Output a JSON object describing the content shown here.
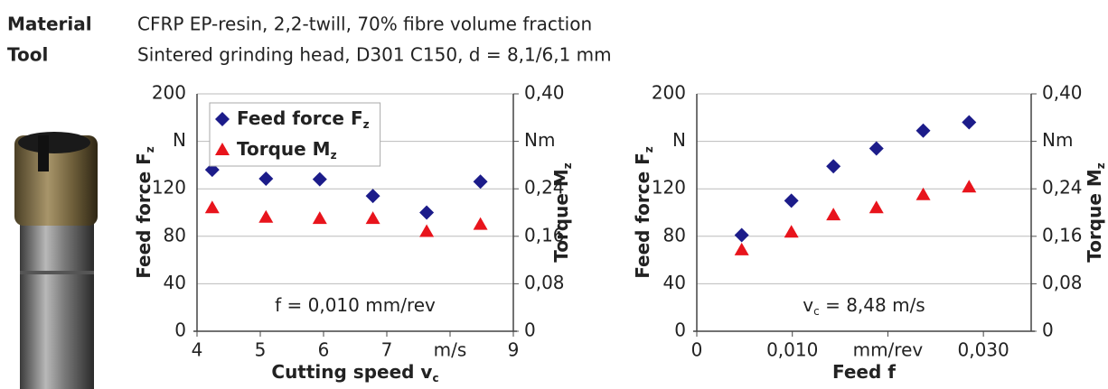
{
  "header": {
    "material_label": "Material",
    "material": "CFRP EP-resin, 2,2-twill, 70% fibre volume fraction",
    "tool_label": "Tool",
    "tool": "Sintered grinding head, D301 C150, d = 8,1/6,1 mm"
  },
  "chart_data": [
    {
      "type": "scatter",
      "xlabel": {
        "text": "Cutting speed v",
        "subscript": "c"
      },
      "ylabel": {
        "text": "Feed force F",
        "subscript": "z"
      },
      "y2label": {
        "text": "Torque M",
        "subscript": "z"
      },
      "annotation": {
        "text": "f = 0,010 mm/rev"
      },
      "x": [
        4.24,
        5.09,
        5.94,
        6.78,
        7.63,
        8.48
      ],
      "xlim": [
        4,
        9
      ],
      "xticks": [
        4,
        5,
        6,
        7,
        {
          "value": 8,
          "label": "m/s"
        },
        9
      ],
      "ylim": [
        0,
        200
      ],
      "yticks": [
        0,
        40,
        80,
        120,
        {
          "value": 160,
          "label": "N"
        },
        200
      ],
      "y2lim": [
        0,
        0.4
      ],
      "y2ticks": [
        {
          "value": 0,
          "label": "0"
        },
        {
          "value": 0.08,
          "label": "0,08"
        },
        {
          "value": 0.16,
          "label": "0,16"
        },
        {
          "value": 0.24,
          "label": "0,24"
        },
        {
          "value": 0.32,
          "label": "Nm"
        },
        {
          "value": 0.4,
          "label": "0,40"
        }
      ],
      "grid": true,
      "legend": "upper left",
      "series": [
        {
          "name": "Feed force F",
          "subscript": "z",
          "color": "#1c1c8a",
          "marker": "diamond",
          "values": [
            136,
            128.5,
            128,
            114,
            100,
            126
          ]
        },
        {
          "name": "Torque M",
          "subscript": "z",
          "color": "#e8141c",
          "marker": "triangle",
          "axis": "y2",
          "values": [
            0.208,
            0.192,
            0.19,
            0.19,
            0.168,
            0.18
          ]
        }
      ]
    },
    {
      "type": "scatter",
      "xlabel": {
        "text": "Feed f"
      },
      "ylabel": {
        "text": "Feed force F",
        "subscript": "z"
      },
      "y2label": {
        "text": "Torque M",
        "subscript": "z"
      },
      "annotation": {
        "text": "v",
        "subscript": "c",
        "text_after": " = 8,48 m/s"
      },
      "x": [
        0.0047,
        0.0099,
        0.0143,
        0.0188,
        0.0237,
        0.0285
      ],
      "xlim": [
        0,
        0.035
      ],
      "xticks": [
        0,
        {
          "value": 0.01,
          "label": "0,010"
        },
        {
          "value": 0.02,
          "label": "mm/rev"
        },
        {
          "value": 0.03,
          "label": "0,030"
        }
      ],
      "ylim": [
        0,
        200
      ],
      "yticks": [
        0,
        40,
        80,
        120,
        {
          "value": 160,
          "label": "N"
        },
        200
      ],
      "y2lim": [
        0,
        0.4
      ],
      "y2ticks": [
        {
          "value": 0,
          "label": "0"
        },
        {
          "value": 0.08,
          "label": "0,08"
        },
        {
          "value": 0.16,
          "label": "0,16"
        },
        {
          "value": 0.24,
          "label": "0,24"
        },
        {
          "value": 0.32,
          "label": "Nm"
        },
        {
          "value": 0.4,
          "label": "0,40"
        }
      ],
      "grid": true,
      "series": [
        {
          "name": "Feed force F",
          "subscript": "z",
          "color": "#1c1c8a",
          "marker": "diamond",
          "values": [
            81,
            110,
            139,
            154,
            169,
            176
          ]
        },
        {
          "name": "Torque M",
          "subscript": "z",
          "color": "#e8141c",
          "marker": "triangle",
          "axis": "y2",
          "values": [
            0.137,
            0.167,
            0.196,
            0.208,
            0.23,
            0.243
          ]
        }
      ]
    }
  ]
}
